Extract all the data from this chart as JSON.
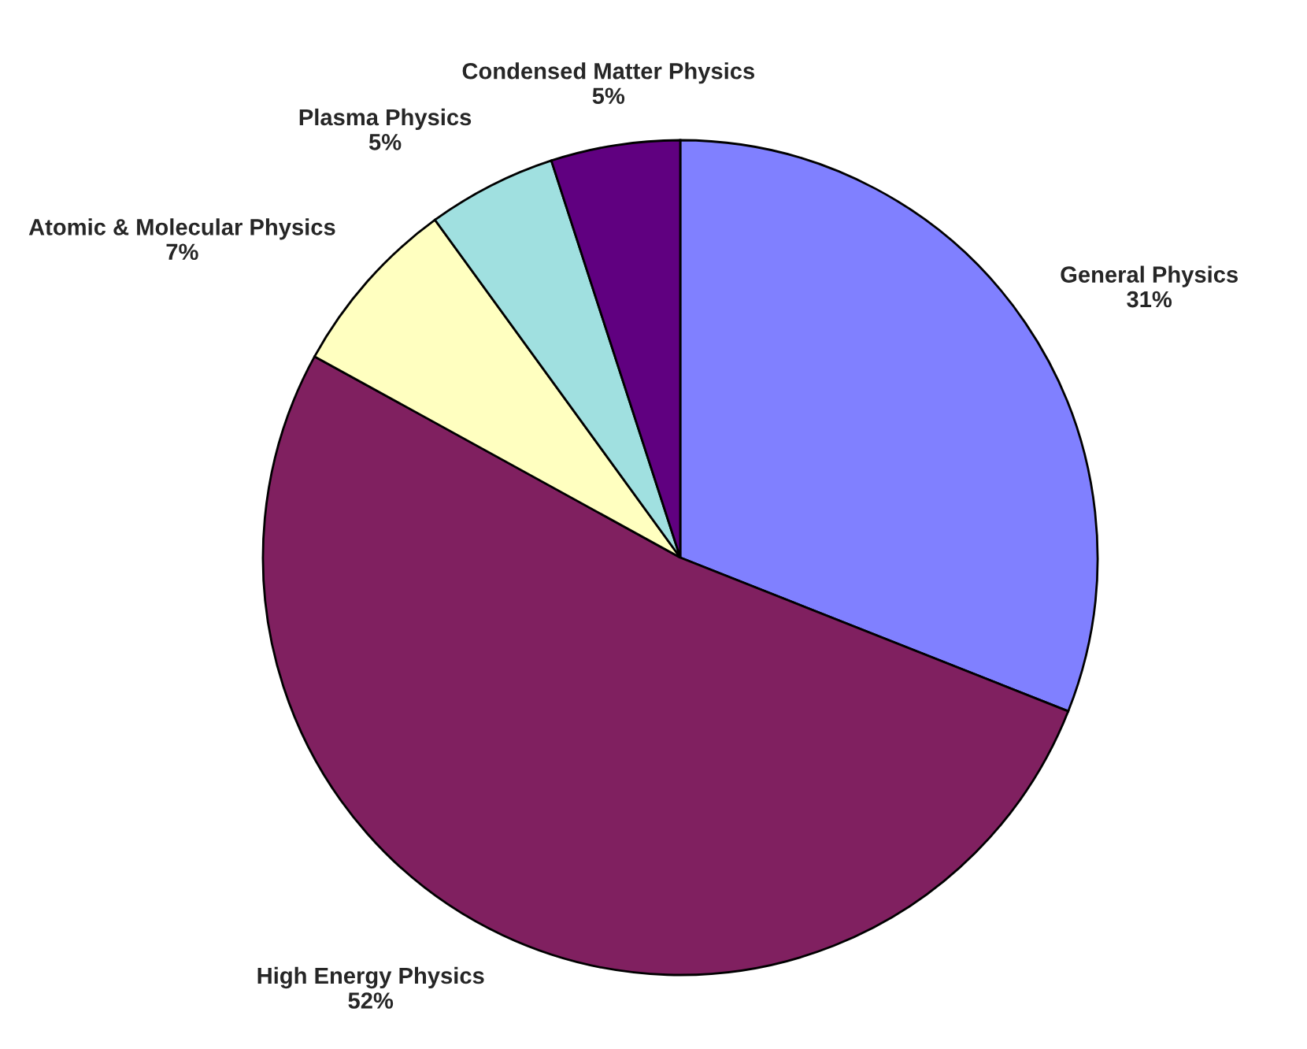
{
  "chart_data": {
    "type": "pie",
    "categories": [
      "General Physics",
      "High Energy Physics",
      "Atomic & Molecular Physics",
      "Plasma Physics",
      "Condensed Matter Physics"
    ],
    "values": [
      31,
      52,
      7,
      5,
      5
    ],
    "value_labels": [
      "31%",
      "52%",
      "7%",
      "5%",
      "5%"
    ],
    "colors": [
      "#8080ff",
      "#802060",
      "#ffffc0",
      "#a0e0e0",
      "#600080"
    ]
  }
}
